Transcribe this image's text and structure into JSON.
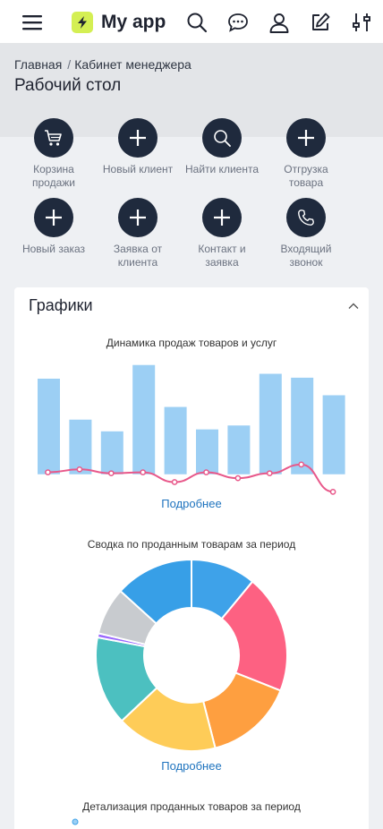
{
  "app": {
    "name": "My app"
  },
  "icons": {
    "menu": "menu-icon",
    "logo": "lightning-icon",
    "search": "search-icon",
    "chat": "chat-icon",
    "profile": "user-icon",
    "edit": "edit-icon",
    "filters": "sliders-icon"
  },
  "breadcrumb": {
    "home": "Главная",
    "separator": "/",
    "current": "Кабинет менеджера"
  },
  "page_title": "Рабочий стол",
  "quick_actions": [
    {
      "label": "Корзина продажи",
      "icon": "cart-icon"
    },
    {
      "label": "Новый клиент",
      "icon": "plus-icon"
    },
    {
      "label": "Найти клиента",
      "icon": "search-icon"
    },
    {
      "label": "Отгрузка товара",
      "icon": "plus-icon"
    },
    {
      "label": "Новый заказ",
      "icon": "plus-icon"
    },
    {
      "label": "Заявка от клиента",
      "icon": "plus-icon"
    },
    {
      "label": "Контакт и заявка",
      "icon": "plus-icon"
    },
    {
      "label": "Входящий звонок",
      "icon": "phone-icon"
    }
  ],
  "charts_card": {
    "title": "Графики",
    "more_label": "Подробнее",
    "second_more_label": "Подробнее",
    "third_title": "Детализация проданных товаров за период"
  },
  "colors": {
    "accent_dark": "#1f2a3d",
    "link": "#1e73be",
    "bar": "#9ccff4",
    "line": "#e8588a",
    "logo": "#d4ef53"
  },
  "chart_data": [
    {
      "type": "bar",
      "title": "Динамика продаж товаров и услуг",
      "categories": [
        "",
        "",
        "",
        "",
        "",
        "",
        "",
        "",
        "",
        ""
      ],
      "series": [
        {
          "type": "bar",
          "values": [
            98,
            56,
            44,
            112,
            69,
            46,
            50,
            103,
            99,
            81
          ]
        },
        {
          "type": "line",
          "values": [
            2,
            5,
            1,
            2,
            -8,
            2,
            -4,
            1,
            10,
            -18
          ]
        }
      ],
      "ylim": [
        -25,
        120
      ],
      "grid": false
    },
    {
      "type": "pie",
      "title": "Сводка по проданным товарам за период",
      "donut": true,
      "values": [
        11,
        20,
        15,
        17,
        15,
        0.7,
        8,
        13.3
      ],
      "colors": [
        "#3ea2e9",
        "#fd6182",
        "#fe9f40",
        "#fecc58",
        "#4cc0c0",
        "#9966fe",
        "#c8cbcf",
        "#379fe7"
      ]
    }
  ]
}
